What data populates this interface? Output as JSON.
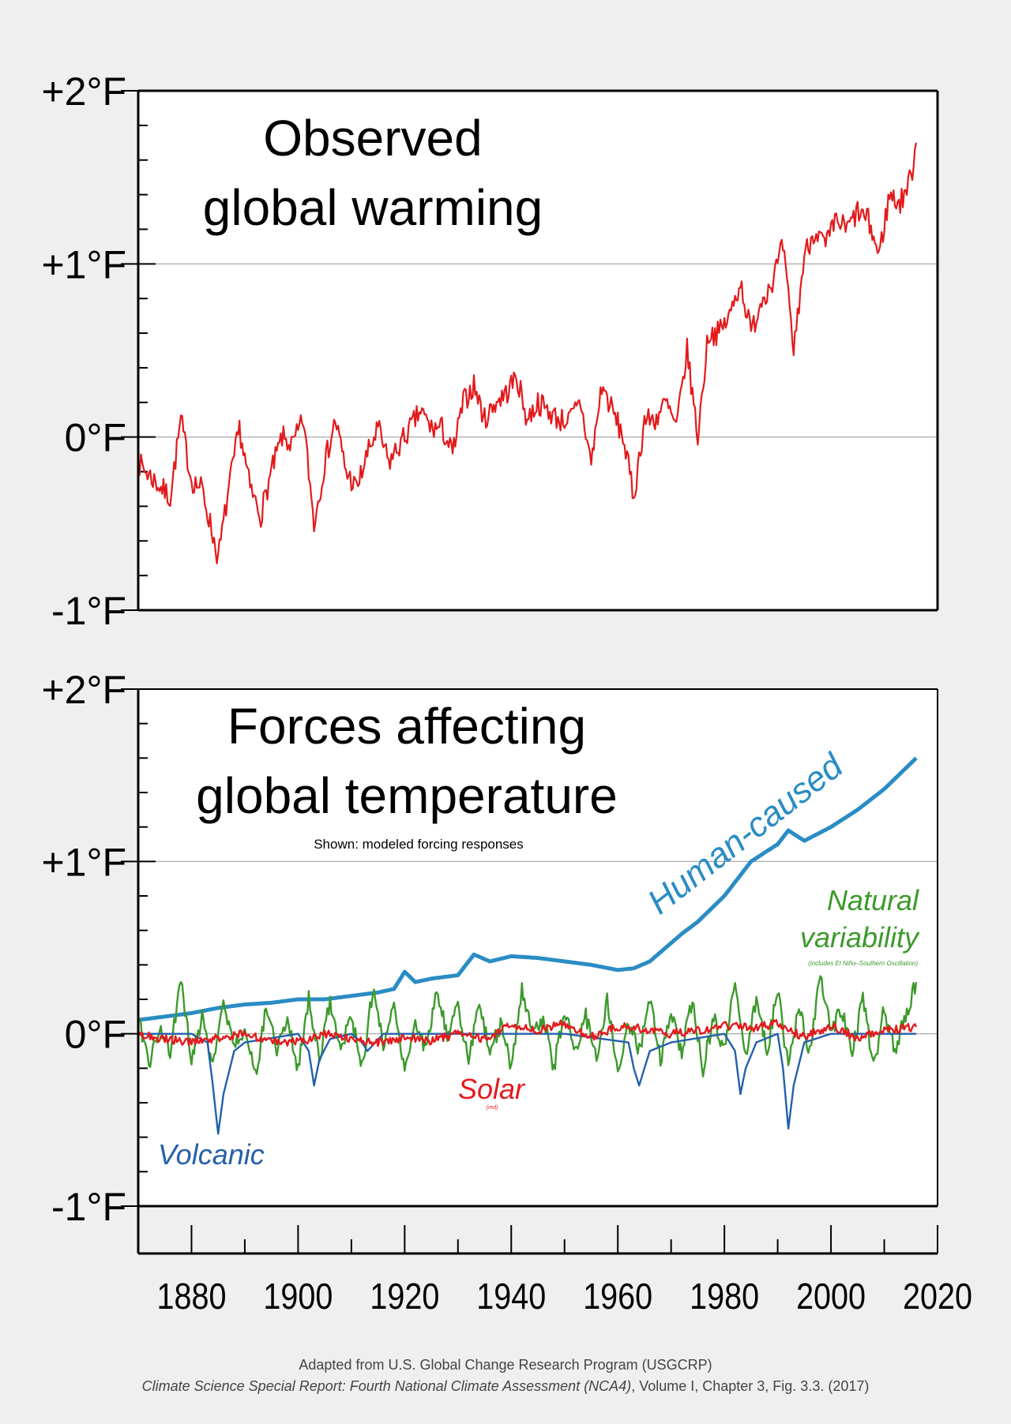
{
  "chart_data": [
    {
      "type": "line",
      "title_lines": [
        "Observed",
        "global warming"
      ],
      "ylabel": "",
      "xlabel": "",
      "xlim": [
        1870,
        2020
      ],
      "ylim": [
        -1,
        2
      ],
      "y_tick_labels": [
        "+2°F",
        "+1°F",
        "0°F",
        "-1°F"
      ],
      "y_ticks": [
        2,
        1,
        0,
        -1
      ],
      "gridlines": [
        1,
        0
      ],
      "series": [
        {
          "name": "Observed",
          "color": "#e31a1c",
          "x": [
            1870,
            1873,
            1876,
            1878,
            1880,
            1882,
            1885,
            1887,
            1889,
            1891,
            1893,
            1895,
            1897,
            1899,
            1901,
            1903,
            1905,
            1907,
            1909,
            1911,
            1913,
            1915,
            1917,
            1919,
            1921,
            1923,
            1925,
            1927,
            1929,
            1931,
            1933,
            1935,
            1937,
            1939,
            1941,
            1943,
            1945,
            1947,
            1949,
            1951,
            1953,
            1955,
            1957,
            1959,
            1961,
            1963,
            1965,
            1967,
            1969,
            1971,
            1973,
            1975,
            1977,
            1979,
            1981,
            1983,
            1985,
            1987,
            1989,
            1991,
            1993,
            1995,
            1997,
            1999,
            2001,
            2003,
            2005,
            2007,
            2009,
            2011,
            2013,
            2015,
            2016
          ],
          "values": [
            -0.15,
            -0.25,
            -0.35,
            0.1,
            -0.25,
            -0.3,
            -0.7,
            -0.3,
            0.05,
            -0.3,
            -0.45,
            -0.2,
            0.0,
            -0.05,
            0.1,
            -0.5,
            -0.15,
            0.1,
            -0.2,
            -0.3,
            -0.1,
            0.05,
            -0.15,
            -0.05,
            0.05,
            0.15,
            0.05,
            0.05,
            -0.1,
            0.2,
            0.3,
            0.1,
            0.2,
            0.25,
            0.35,
            0.1,
            0.2,
            0.15,
            0.1,
            0.1,
            0.2,
            -0.15,
            0.3,
            0.15,
            0.0,
            -0.35,
            0.1,
            0.1,
            0.2,
            0.05,
            0.5,
            0.0,
            0.6,
            0.6,
            0.7,
            0.9,
            0.6,
            0.8,
            0.9,
            1.1,
            0.5,
            1.05,
            1.2,
            1.1,
            1.25,
            1.2,
            1.3,
            1.25,
            1.05,
            1.4,
            1.35,
            1.5,
            1.7
          ]
        }
      ]
    },
    {
      "type": "line",
      "title_lines": [
        "Forces affecting",
        "global temperature"
      ],
      "subtitle": "Shown: modeled forcing responses",
      "ylabel": "",
      "xlabel": "",
      "xlim": [
        1870,
        2020
      ],
      "ylim": [
        -1,
        2
      ],
      "y_tick_labels": [
        "+2°F",
        "+1°F",
        "0°F",
        "-1°F"
      ],
      "y_ticks": [
        2,
        1,
        0,
        -1
      ],
      "gridlines": [
        1,
        0
      ],
      "x_ticks": [
        1880,
        1900,
        1920,
        1940,
        1960,
        1980,
        2000,
        2020
      ],
      "x_tick_labels": [
        "1880",
        "1900",
        "1920",
        "1940",
        "1960",
        "1980",
        "2000",
        "2020"
      ],
      "series": [
        {
          "name": "Human-caused",
          "label": "Human-caused",
          "color": "#2a8cc4",
          "x": [
            1870,
            1875,
            1880,
            1885,
            1890,
            1895,
            1900,
            1905,
            1910,
            1915,
            1918,
            1920,
            1922,
            1925,
            1930,
            1933,
            1936,
            1940,
            1945,
            1950,
            1955,
            1960,
            1963,
            1966,
            1969,
            1972,
            1975,
            1980,
            1985,
            1990,
            1992,
            1995,
            2000,
            2005,
            2010,
            2016
          ],
          "values": [
            0.08,
            0.1,
            0.12,
            0.15,
            0.17,
            0.18,
            0.2,
            0.2,
            0.22,
            0.24,
            0.26,
            0.36,
            0.3,
            0.32,
            0.34,
            0.46,
            0.42,
            0.45,
            0.44,
            0.42,
            0.4,
            0.37,
            0.38,
            0.42,
            0.5,
            0.58,
            0.65,
            0.8,
            1.0,
            1.1,
            1.18,
            1.12,
            1.2,
            1.3,
            1.42,
            1.6
          ]
        },
        {
          "name": "Natural variability",
          "label_lines": [
            "Natural",
            "variability"
          ],
          "note": "(includes El Niño–Southern Oscillation)",
          "color": "#3c9a2b",
          "x": [
            1870,
            1872,
            1874,
            1876,
            1878,
            1880,
            1882,
            1884,
            1886,
            1888,
            1890,
            1892,
            1894,
            1896,
            1898,
            1900,
            1902,
            1904,
            1906,
            1908,
            1910,
            1912,
            1914,
            1916,
            1918,
            1920,
            1922,
            1924,
            1926,
            1928,
            1930,
            1932,
            1934,
            1936,
            1938,
            1940,
            1942,
            1944,
            1946,
            1948,
            1950,
            1952,
            1954,
            1956,
            1958,
            1960,
            1962,
            1964,
            1966,
            1968,
            1970,
            1972,
            1974,
            1976,
            1978,
            1980,
            1982,
            1984,
            1986,
            1988,
            1990,
            1992,
            1994,
            1996,
            1998,
            2000,
            2002,
            2004,
            2006,
            2008,
            2010,
            2012,
            2014,
            2016
          ],
          "values": [
            0.1,
            -0.2,
            0.05,
            -0.1,
            0.3,
            -0.15,
            0.1,
            -0.2,
            0.2,
            -0.1,
            0.05,
            -0.25,
            0.15,
            -0.1,
            0.1,
            -0.2,
            0.2,
            -0.15,
            0.2,
            -0.1,
            0.1,
            -0.2,
            0.25,
            -0.05,
            0.15,
            -0.2,
            0.1,
            -0.1,
            0.25,
            0.0,
            0.15,
            -0.15,
            0.2,
            -0.1,
            0.05,
            -0.2,
            0.25,
            0.0,
            0.1,
            -0.2,
            0.15,
            -0.1,
            0.1,
            -0.15,
            0.2,
            -0.25,
            0.05,
            -0.1,
            0.2,
            -0.15,
            0.1,
            -0.1,
            0.2,
            -0.2,
            0.1,
            -0.1,
            0.3,
            -0.15,
            0.2,
            -0.1,
            0.25,
            -0.2,
            0.15,
            -0.1,
            0.35,
            0.0,
            0.15,
            -0.1,
            0.2,
            -0.2,
            0.15,
            -0.1,
            0.1,
            0.3
          ]
        },
        {
          "name": "Volcanic",
          "label": "Volcanic",
          "color": "#2460ad",
          "x": [
            1870,
            1880,
            1883,
            1884,
            1885,
            1886,
            1888,
            1890,
            1900,
            1902,
            1903,
            1904,
            1906,
            1910,
            1912,
            1913,
            1916,
            1930,
            1950,
            1962,
            1963,
            1964,
            1966,
            1970,
            1980,
            1982,
            1983,
            1984,
            1986,
            1990,
            1991,
            1992,
            1993,
            1995,
            2000,
            2016
          ],
          "values": [
            0.0,
            0.0,
            -0.05,
            -0.3,
            -0.58,
            -0.35,
            -0.1,
            -0.05,
            0.0,
            -0.1,
            -0.3,
            -0.15,
            -0.03,
            0.0,
            -0.05,
            -0.1,
            0.0,
            0.0,
            0.0,
            -0.05,
            -0.2,
            -0.3,
            -0.1,
            -0.05,
            0.0,
            -0.1,
            -0.35,
            -0.2,
            -0.05,
            0.0,
            -0.2,
            -0.55,
            -0.3,
            -0.05,
            0.0,
            0.0
          ]
        },
        {
          "name": "Solar",
          "label": "Solar",
          "sublabel": "(red)",
          "color": "#e31a1c",
          "x": [
            1870,
            1875,
            1880,
            1885,
            1890,
            1895,
            1900,
            1905,
            1910,
            1915,
            1920,
            1925,
            1930,
            1935,
            1940,
            1945,
            1950,
            1955,
            1960,
            1965,
            1970,
            1975,
            1980,
            1985,
            1990,
            1995,
            2000,
            2005,
            2010,
            2016
          ],
          "values": [
            0.0,
            -0.03,
            -0.05,
            -0.02,
            0.0,
            -0.04,
            -0.05,
            0.0,
            -0.03,
            -0.05,
            -0.02,
            -0.04,
            0.0,
            -0.03,
            0.05,
            0.02,
            0.06,
            -0.02,
            0.04,
            0.03,
            0.0,
            0.02,
            0.05,
            0.03,
            0.06,
            -0.02,
            0.05,
            -0.03,
            0.02,
            0.04
          ]
        }
      ]
    }
  ],
  "credit": {
    "line1": "Adapted from U.S. Global Change Research Program (USGCRP)",
    "line2_italic": "Climate Science Special Report: Fourth National Climate Assessment (NCA4)",
    "line2_rest": ", Volume I, Chapter 3, Fig. 3.3. (2017)"
  }
}
